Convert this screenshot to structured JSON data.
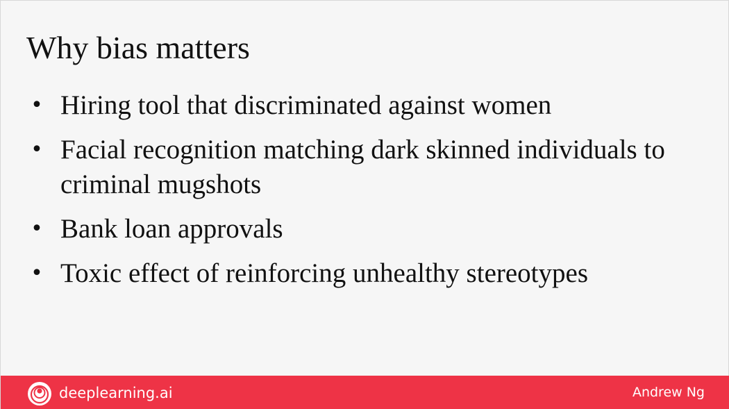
{
  "slide": {
    "title": "Why bias matters",
    "bullets": [
      "Hiring tool that discriminated against women",
      "Facial recognition matching dark skinned individuals to criminal mugshots",
      "Bank loan approvals",
      "Toxic effect of reinforcing unhealthy stereotypes"
    ],
    "bullet_symbol": "•"
  },
  "footer": {
    "brand": "deeplearning.ai",
    "author": "Andrew Ng",
    "logo_icon": "deeplearning-logo-icon"
  },
  "colors": {
    "background": "#f6f6f6",
    "footer": "#ee3346",
    "text": "#111111",
    "footer_text": "#ffffff"
  }
}
